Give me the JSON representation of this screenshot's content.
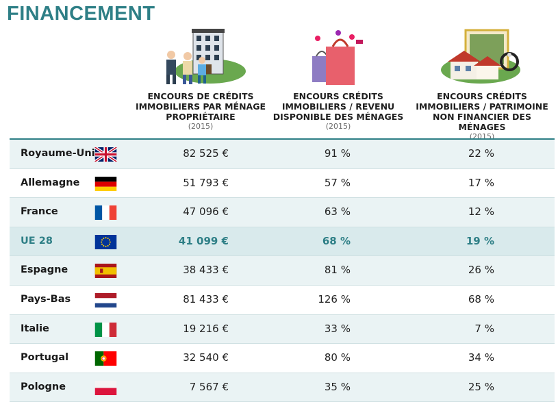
{
  "title": "FINANCEMENT",
  "headers": [
    {
      "text": "ENCOURS DE CRÉDITS IMMOBILIERS PAR MÉNAGE PROPRIÉTAIRE",
      "year": "(2015)",
      "icon": "owner-family-building-icon"
    },
    {
      "text": "ENCOURS CRÉDITS IMMOBILIERS / REVENU DISPONIBLE DES MÉNAGES",
      "year": "(2015)",
      "icon": "shopping-bags-icon"
    },
    {
      "text": "ENCOURS CRÉDITS IMMOBILIERS / PATRIMOINE NON FINANCIER DES MÉNAGES",
      "year": "(2015)",
      "icon": "house-jewelry-icon"
    }
  ],
  "rows": [
    {
      "country": "Royaume-Uni",
      "flag": "uk",
      "c1": "82 525 €",
      "c2": "91 %",
      "c3": "22 %"
    },
    {
      "country": "Allemagne",
      "flag": "de",
      "c1": "51 793 €",
      "c2": "57 %",
      "c3": "17 %"
    },
    {
      "country": "France",
      "flag": "fr",
      "c1": "47 096 €",
      "c2": "63 %",
      "c3": "12 %"
    },
    {
      "country": "UE 28",
      "flag": "eu",
      "c1": "41 099 €",
      "c2": "68 %",
      "c3": "19 %",
      "highlight": true
    },
    {
      "country": "Espagne",
      "flag": "es",
      "c1": "38 433 €",
      "c2": "81 %",
      "c3": "26 %"
    },
    {
      "country": "Pays-Bas",
      "flag": "nl",
      "c1": "81 433 €",
      "c2": "126 %",
      "c3": "68 %"
    },
    {
      "country": "Italie",
      "flag": "it",
      "c1": "19 216 €",
      "c2": "33 %",
      "c3": "7 %"
    },
    {
      "country": "Portugal",
      "flag": "pt",
      "c1": "32 540 €",
      "c2": "80 %",
      "c3": "34 %"
    },
    {
      "country": "Pologne",
      "flag": "pl",
      "c1": "7 567 €",
      "c2": "35 %",
      "c3": "25 %"
    }
  ],
  "colors": {
    "accent": "#2e7f86",
    "row_alt": "#eaf3f4",
    "highlight_row": "#d9eaec"
  }
}
